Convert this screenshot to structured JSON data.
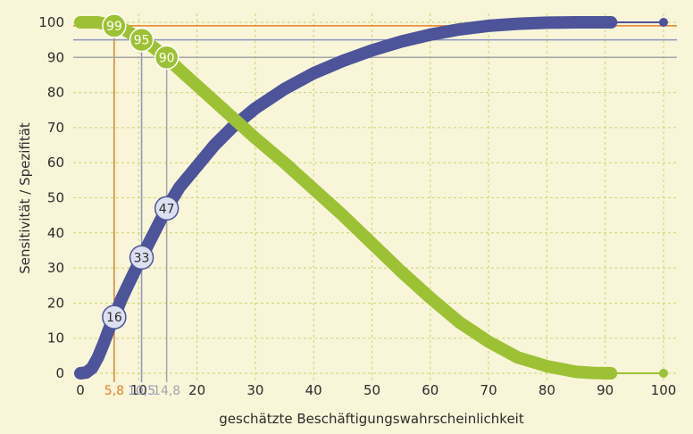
{
  "chart_data": {
    "type": "line",
    "xlabel": "geschätzte Beschäftigungswahrscheinlichkeit",
    "ylabel": "Sensitivität / Spezifität",
    "xlim": [
      0,
      100
    ],
    "ylim": [
      0,
      100
    ],
    "x_ticks": [
      0,
      10,
      20,
      30,
      40,
      50,
      60,
      70,
      80,
      90,
      100
    ],
    "y_ticks": [
      0,
      10,
      20,
      30,
      40,
      50,
      60,
      70,
      80,
      90,
      100
    ],
    "grid": true,
    "series": [
      {
        "color": "#4d5499",
        "x": [
          0,
          1,
          2,
          3,
          4,
          5,
          5.8,
          7,
          8,
          9,
          10.5,
          12,
          14.8,
          17,
          20,
          23,
          26,
          30,
          35,
          40,
          45,
          50,
          55,
          60,
          65,
          70,
          75,
          80,
          85,
          88,
          91,
          100
        ],
        "y": [
          0,
          0.2,
          1.5,
          4.5,
          8.5,
          13,
          16,
          21,
          24.5,
          28,
          33,
          38,
          47,
          53,
          59,
          65,
          70,
          75.5,
          81,
          85.5,
          89,
          92,
          94.5,
          96.5,
          98,
          99,
          99.6,
          99.9,
          100,
          100,
          100,
          100
        ]
      },
      {
        "color": "#9dc135",
        "x": [
          0,
          3,
          5,
          5.8,
          7,
          10.5,
          12,
          14.8,
          17,
          20,
          25,
          30,
          35,
          40,
          45,
          50,
          55,
          60,
          65,
          70,
          75,
          80,
          85,
          88,
          91,
          100
        ],
        "y": [
          100,
          100,
          99.3,
          99,
          98.5,
          95,
          93.5,
          90,
          86.5,
          82,
          74.5,
          67,
          60,
          52.5,
          45,
          37,
          29,
          21.5,
          14.5,
          9,
          4.5,
          2,
          0.4,
          0.1,
          0,
          0
        ]
      }
    ],
    "reference_lines": [
      {
        "x": 5.8,
        "y": 99,
        "x_label": "5,8",
        "color": "#e8812b"
      },
      {
        "x": 10.5,
        "y": 95,
        "x_label": "10,5",
        "color": "#8f95c0"
      },
      {
        "x": 14.8,
        "y": 90,
        "x_label": "14,8",
        "color": "#a6a6a6"
      }
    ],
    "annotations": [
      {
        "x": 5.8,
        "y": 99,
        "text": "99",
        "series": 1
      },
      {
        "x": 10.5,
        "y": 95,
        "text": "95",
        "series": 1
      },
      {
        "x": 14.8,
        "y": 90,
        "text": "90",
        "series": 1
      },
      {
        "x": 5.8,
        "y": 16,
        "text": "16",
        "series": 0
      },
      {
        "x": 10.5,
        "y": 33,
        "text": "33",
        "series": 0
      },
      {
        "x": 14.8,
        "y": 47,
        "text": "47",
        "series": 0
      }
    ]
  }
}
